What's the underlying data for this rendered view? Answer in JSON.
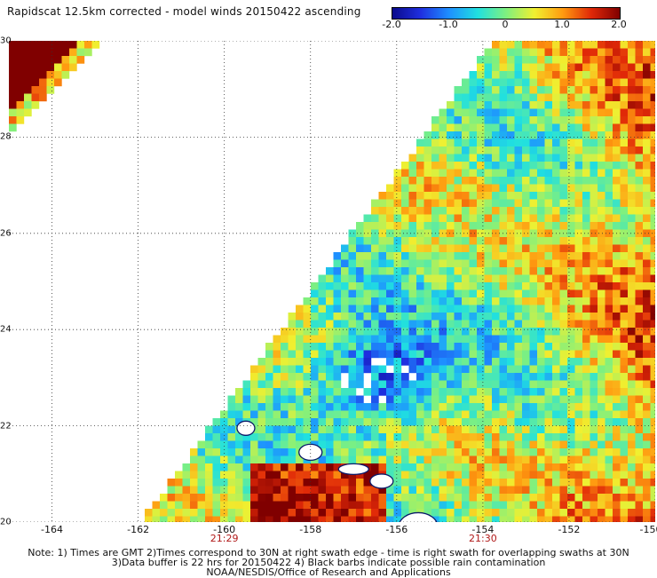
{
  "title": "Rapidscat 12.5km corrected - model winds 20150422 ascending",
  "colorbar": {
    "ticks": [
      "-2.0",
      "-1.0",
      "0",
      "1.0",
      "2.0"
    ],
    "tick_values": [
      -2.0,
      -1.0,
      0,
      1.0,
      2.0
    ],
    "range": [
      -2.0,
      2.0
    ],
    "colors": [
      "#0a0a8c",
      "#1f2fe0",
      "#1e90ff",
      "#20e0e0",
      "#7ff07f",
      "#f0f030",
      "#ff9a10",
      "#e02808",
      "#800000"
    ]
  },
  "axes": {
    "x_labels": [
      "-164",
      "-162",
      "-160",
      "-158",
      "-156",
      "-154",
      "-152",
      "-150"
    ],
    "x_values": [
      -164,
      -162,
      -160,
      -158,
      -156,
      -154,
      -152,
      -150
    ],
    "y_labels": [
      "30",
      "28",
      "26",
      "24",
      "22",
      "20"
    ],
    "y_values": [
      30,
      28,
      26,
      24,
      22,
      20
    ],
    "lon_range": [
      -165,
      -150
    ],
    "lat_range": [
      20,
      30
    ],
    "grid": "dotted"
  },
  "time_labels": [
    {
      "text": "21:29",
      "lon": -160
    },
    {
      "text": "21:30",
      "lon": -154
    }
  ],
  "notes": [
    "Note: 1) Times are GMT 2)Times correspond to 30N at right swath edge - time is right swath for overlapping swaths at 30N",
    "3)Data buffer is 22 hrs for 20150422 4) Black barbs indicate possible rain contamination",
    "NOAA/NESDIS/Office of Research and Applications"
  ]
}
